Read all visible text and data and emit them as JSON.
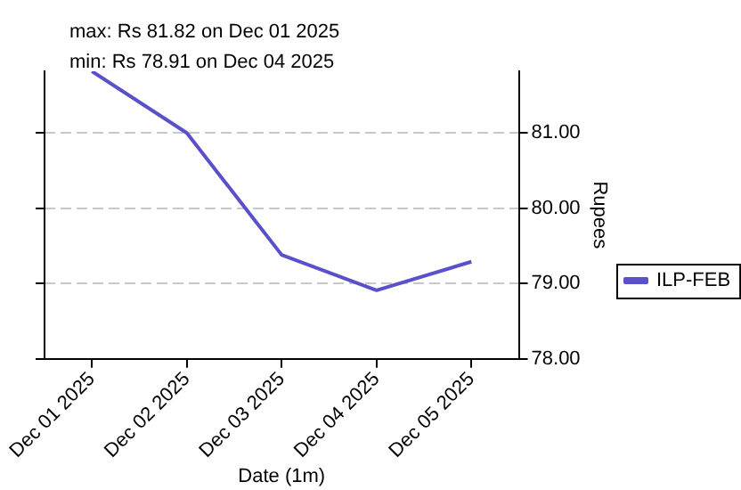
{
  "chart_data": {
    "type": "line",
    "annotations": [
      "max: Rs 81.82 on Dec 01 2025",
      "min: Rs 78.91 on Dec 04 2025"
    ],
    "xlabel": "Date (1m)",
    "ylabel": "Rupees",
    "categories": [
      "Dec 01 2025",
      "Dec 02 2025",
      "Dec 03 2025",
      "Dec 04 2025",
      "Dec 05 2025"
    ],
    "series": [
      {
        "name": "ILP-FEB",
        "color": "#5a50cc",
        "values": [
          81.82,
          81.0,
          79.38,
          78.91,
          79.29
        ]
      }
    ],
    "ylim": [
      78,
      81.82
    ],
    "yticks": [
      {
        "value": 78,
        "label": "78.00"
      },
      {
        "value": 79,
        "label": "79.00"
      },
      {
        "value": 80,
        "label": "80.00"
      },
      {
        "value": 81,
        "label": "81.00"
      }
    ],
    "grid": "y",
    "legend": "right",
    "marker": "none",
    "line_style": "solid"
  }
}
